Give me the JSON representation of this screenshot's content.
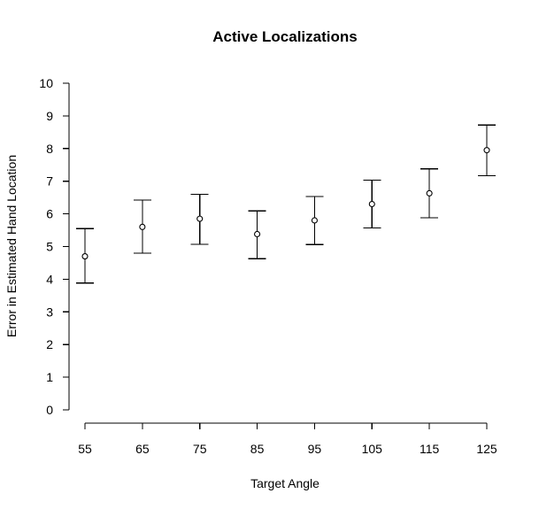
{
  "chart_data": {
    "type": "scatter",
    "title": "Active Localizations",
    "xlabel": "Target Angle",
    "ylabel": "Error in Estimated Hand Location",
    "categories": [
      "55",
      "65",
      "75",
      "85",
      "95",
      "105",
      "115",
      "125"
    ],
    "x": [
      55,
      65,
      75,
      85,
      95,
      105,
      115,
      125
    ],
    "y": [
      4.7,
      5.6,
      5.85,
      5.38,
      5.8,
      6.3,
      6.63,
      7.95
    ],
    "lower": [
      3.88,
      4.8,
      5.07,
      4.63,
      5.06,
      5.57,
      5.88,
      7.17
    ],
    "upper": [
      5.55,
      6.42,
      6.6,
      6.09,
      6.53,
      7.03,
      7.38,
      8.72
    ],
    "y_ticks": [
      "0",
      "1",
      "2",
      "3",
      "4",
      "5",
      "6",
      "7",
      "8",
      "9",
      "10"
    ],
    "ylim": [
      0,
      10
    ],
    "xlim": [
      55,
      125
    ],
    "grid": false,
    "legend": "none",
    "marker": "open circle",
    "error_bars": true,
    "colors": {
      "foreground": "#000000",
      "background": "#ffffff"
    }
  }
}
